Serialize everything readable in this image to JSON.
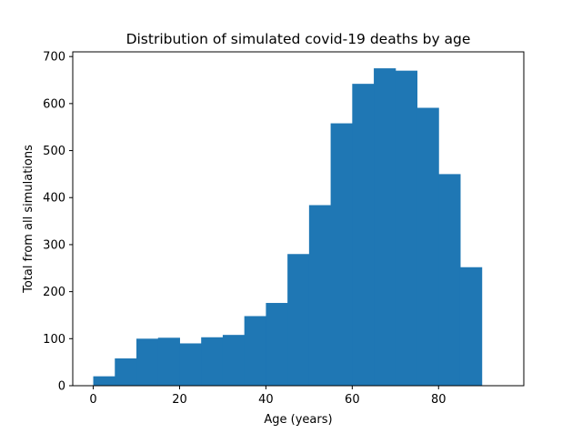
{
  "chart_data": {
    "type": "bar",
    "title": "Distribution of simulated covid-19 deaths by age",
    "xlabel": "Age (years)",
    "ylabel": "Total from all simulations",
    "xlim": [
      -4.75,
      99.75
    ],
    "ylim": [
      0,
      710
    ],
    "xticks": [
      0,
      20,
      40,
      60,
      80
    ],
    "yticks": [
      0,
      100,
      200,
      300,
      400,
      500,
      600,
      700
    ],
    "bin_edges": [
      0,
      5,
      10,
      15,
      20,
      25,
      30,
      35,
      40,
      45,
      50,
      55,
      60,
      65,
      70,
      75,
      80,
      85,
      90
    ],
    "values": [
      20,
      58,
      100,
      102,
      90,
      103,
      108,
      148,
      176,
      280,
      384,
      558,
      642,
      675,
      670,
      591,
      450,
      252
    ],
    "bar_color": "#1f77b4",
    "grid": false
  }
}
